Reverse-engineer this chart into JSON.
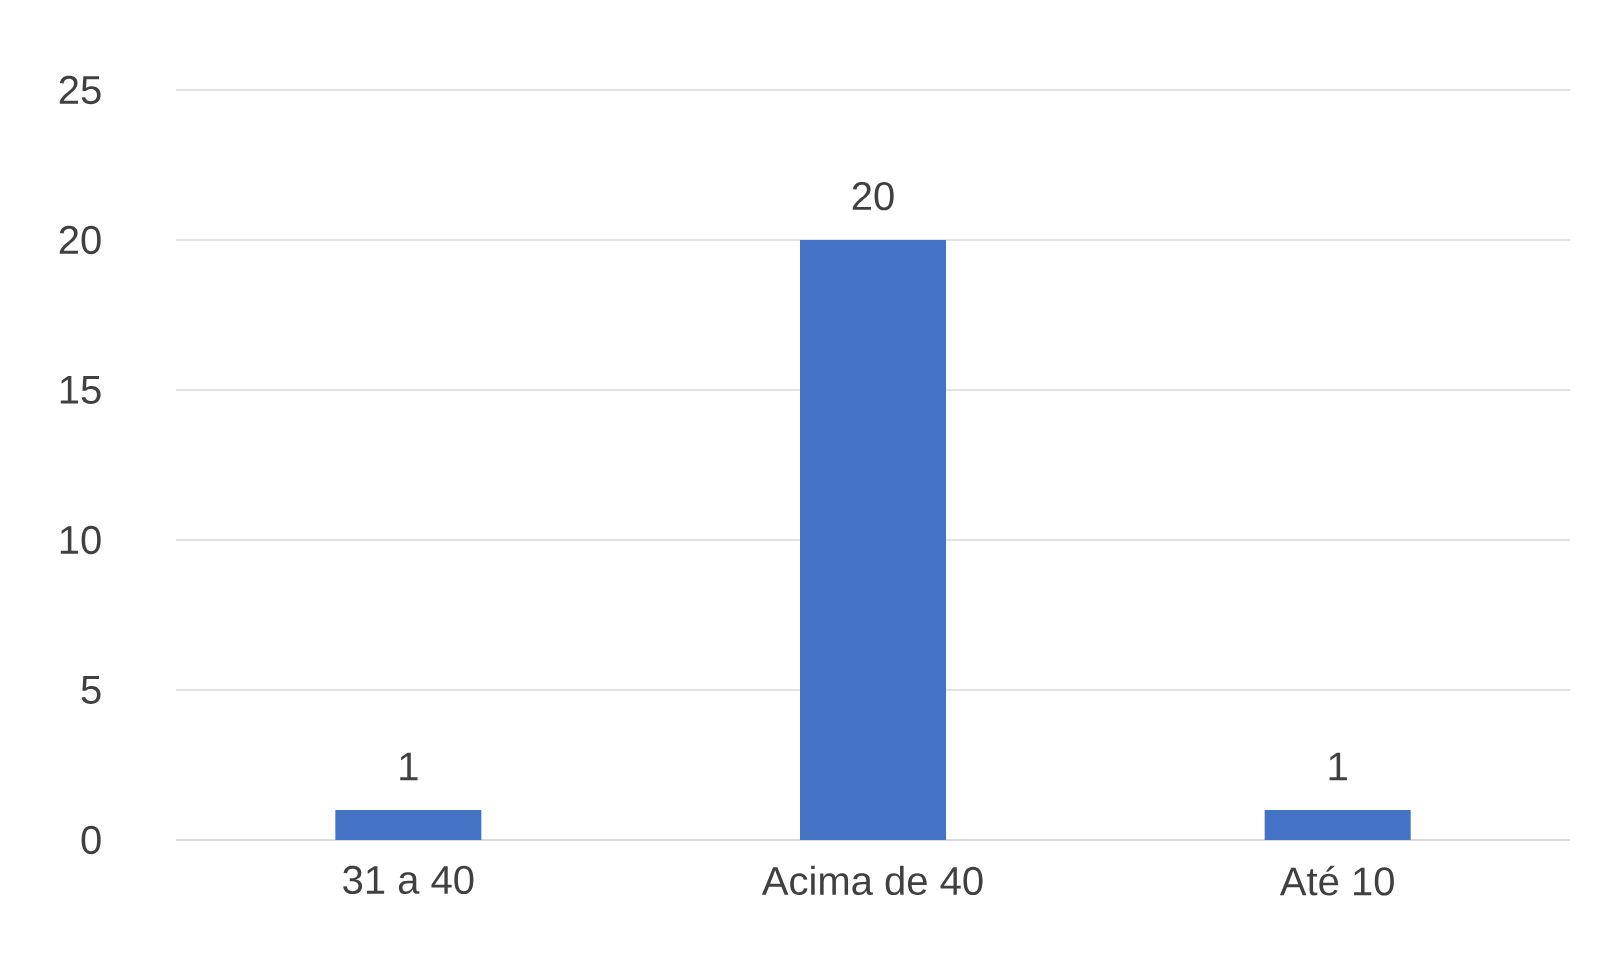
{
  "chart_data": {
    "type": "bar",
    "categories": [
      "31 a 40",
      "Acima de 40",
      "Até 10"
    ],
    "values": [
      1,
      20,
      1
    ],
    "color": "#4472c4",
    "ylim": [
      0,
      25
    ],
    "yticks": [
      0,
      5,
      10,
      15,
      20,
      25
    ],
    "grid": "y",
    "data_labels": true
  }
}
